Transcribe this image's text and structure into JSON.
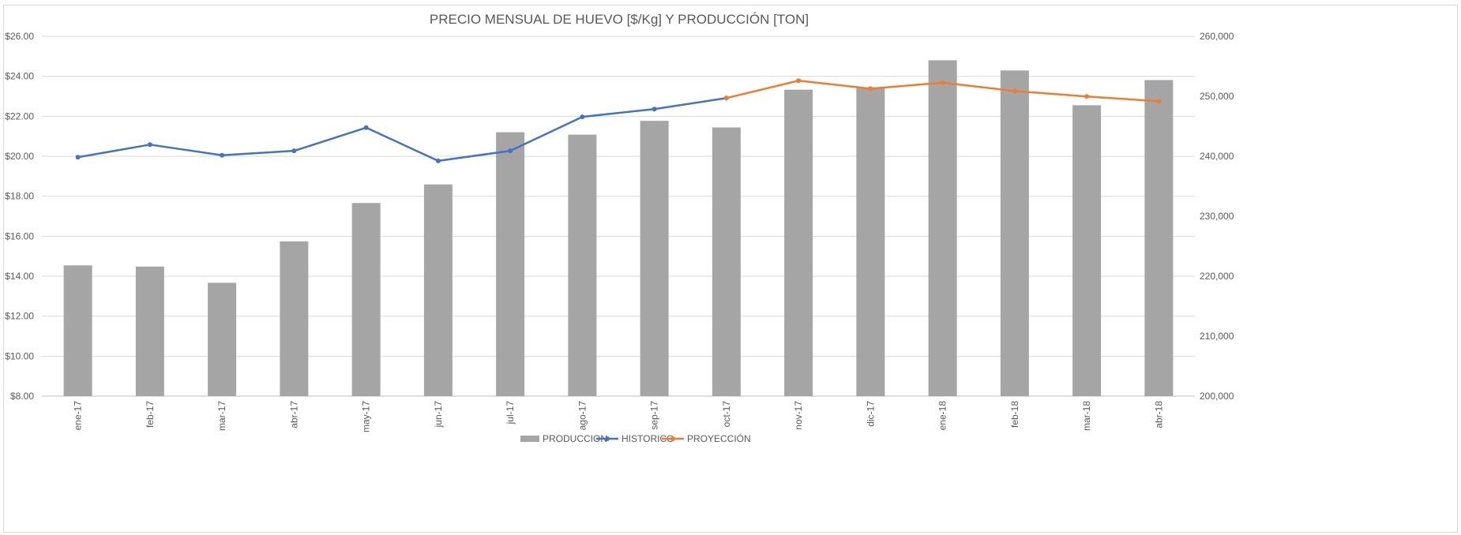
{
  "chart_data": {
    "type": "bar+line",
    "title": "PRECIO MENSUAL DE HUEVO [$/Kg] Y PRODUCCIÓN [TON]",
    "categories": [
      "ene-17",
      "feb-17",
      "mar-17",
      "abr-17",
      "may-17",
      "jun-17",
      "jul-17",
      "ago-17",
      "sep-17",
      "oct-17",
      "nov-17",
      "dic-17",
      "ene-18",
      "feb-18",
      "mar-18",
      "abr-18"
    ],
    "y_left": {
      "min": 8,
      "max": 26,
      "step": 2,
      "tick_labels": [
        "$8.00",
        "$10.00",
        "$12.00",
        "$14.00",
        "$16.00",
        "$18.00",
        "$20.00",
        "$22.00",
        "$24.00",
        "$26.00"
      ]
    },
    "y_right": {
      "min": 200000,
      "max": 260000,
      "step": 10000,
      "tick_labels": [
        "200,000",
        "210,000",
        "220,000",
        "230,000",
        "240,000",
        "250,000",
        "260,000"
      ]
    },
    "grid": true,
    "legend_position": "bottom",
    "series": [
      {
        "name": "PRODUCCION",
        "kind": "bar",
        "axis": "right",
        "color": "#a5a5a5",
        "values": [
          221800,
          221600,
          218900,
          225800,
          232200,
          235300,
          244000,
          243600,
          245900,
          244800,
          251100,
          251500,
          256000,
          254300,
          248500,
          252700
        ]
      },
      {
        "name": "HISTORICO",
        "kind": "line",
        "axis": "left",
        "color": "#4472c4",
        "values": [
          19.95,
          20.58,
          20.05,
          20.27,
          21.43,
          19.77,
          20.27,
          21.97,
          22.36,
          22.91,
          null,
          null,
          null,
          null,
          null,
          null
        ]
      },
      {
        "name": "PROYECCIÓN",
        "kind": "line",
        "axis": "left",
        "color": "#ed7d31",
        "values": [
          null,
          null,
          null,
          null,
          null,
          null,
          null,
          null,
          null,
          22.91,
          23.78,
          23.38,
          23.68,
          23.26,
          22.99,
          22.75
        ]
      }
    ]
  },
  "legend": {
    "bar_label": "PRODUCCION",
    "line1_label": "HISTORICO",
    "line2_label": "PROYECCIÓN"
  }
}
